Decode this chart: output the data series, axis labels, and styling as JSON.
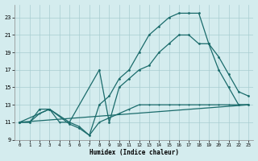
{
  "xlabel": "Humidex (Indice chaleur)",
  "bg_color": "#d4ecee",
  "grid_color": "#a8cdd0",
  "line_color": "#1a6b6b",
  "xlim": [
    -0.5,
    23.5
  ],
  "ylim": [
    9,
    24.5
  ],
  "xticks": [
    0,
    1,
    2,
    3,
    4,
    5,
    6,
    7,
    8,
    9,
    10,
    11,
    12,
    13,
    14,
    15,
    16,
    17,
    18,
    19,
    20,
    21,
    22,
    23
  ],
  "yticks": [
    9,
    11,
    13,
    15,
    17,
    19,
    21,
    23
  ],
  "line1_x": [
    0,
    1,
    2,
    3,
    5,
    6,
    7,
    8,
    9,
    10,
    11,
    12,
    13,
    14,
    15,
    16,
    17,
    18,
    19,
    20,
    21,
    22,
    23
  ],
  "line1_y": [
    11,
    11,
    12.5,
    12.5,
    10.8,
    10.3,
    9.5,
    13,
    14,
    16,
    17,
    19,
    21,
    22,
    23,
    23.5,
    23.5,
    23.5,
    20,
    17,
    15,
    13,
    13
  ],
  "line2_x": [
    0,
    3,
    5,
    8,
    9,
    10,
    11,
    12,
    13,
    14,
    15,
    16,
    17,
    18,
    19,
    20,
    21,
    22,
    23
  ],
  "line2_y": [
    11,
    12.5,
    11,
    17,
    11,
    15,
    16,
    17,
    17.5,
    19,
    20,
    21,
    21,
    20,
    20,
    18.5,
    16.5,
    14.5,
    14
  ],
  "line3_x": [
    0,
    23
  ],
  "line3_y": [
    11,
    13
  ],
  "line4_x": [
    0,
    1,
    2,
    3,
    4,
    5,
    6,
    7,
    8,
    9,
    10,
    11,
    12,
    13,
    14,
    15,
    16,
    17,
    18,
    19,
    20,
    21,
    22,
    23
  ],
  "line4_y": [
    11,
    11,
    12,
    12.5,
    11,
    11,
    10.5,
    9.5,
    11,
    11.5,
    12,
    12.5,
    13,
    13,
    13,
    13,
    13,
    13,
    13,
    13,
    13,
    13,
    13,
    13
  ]
}
